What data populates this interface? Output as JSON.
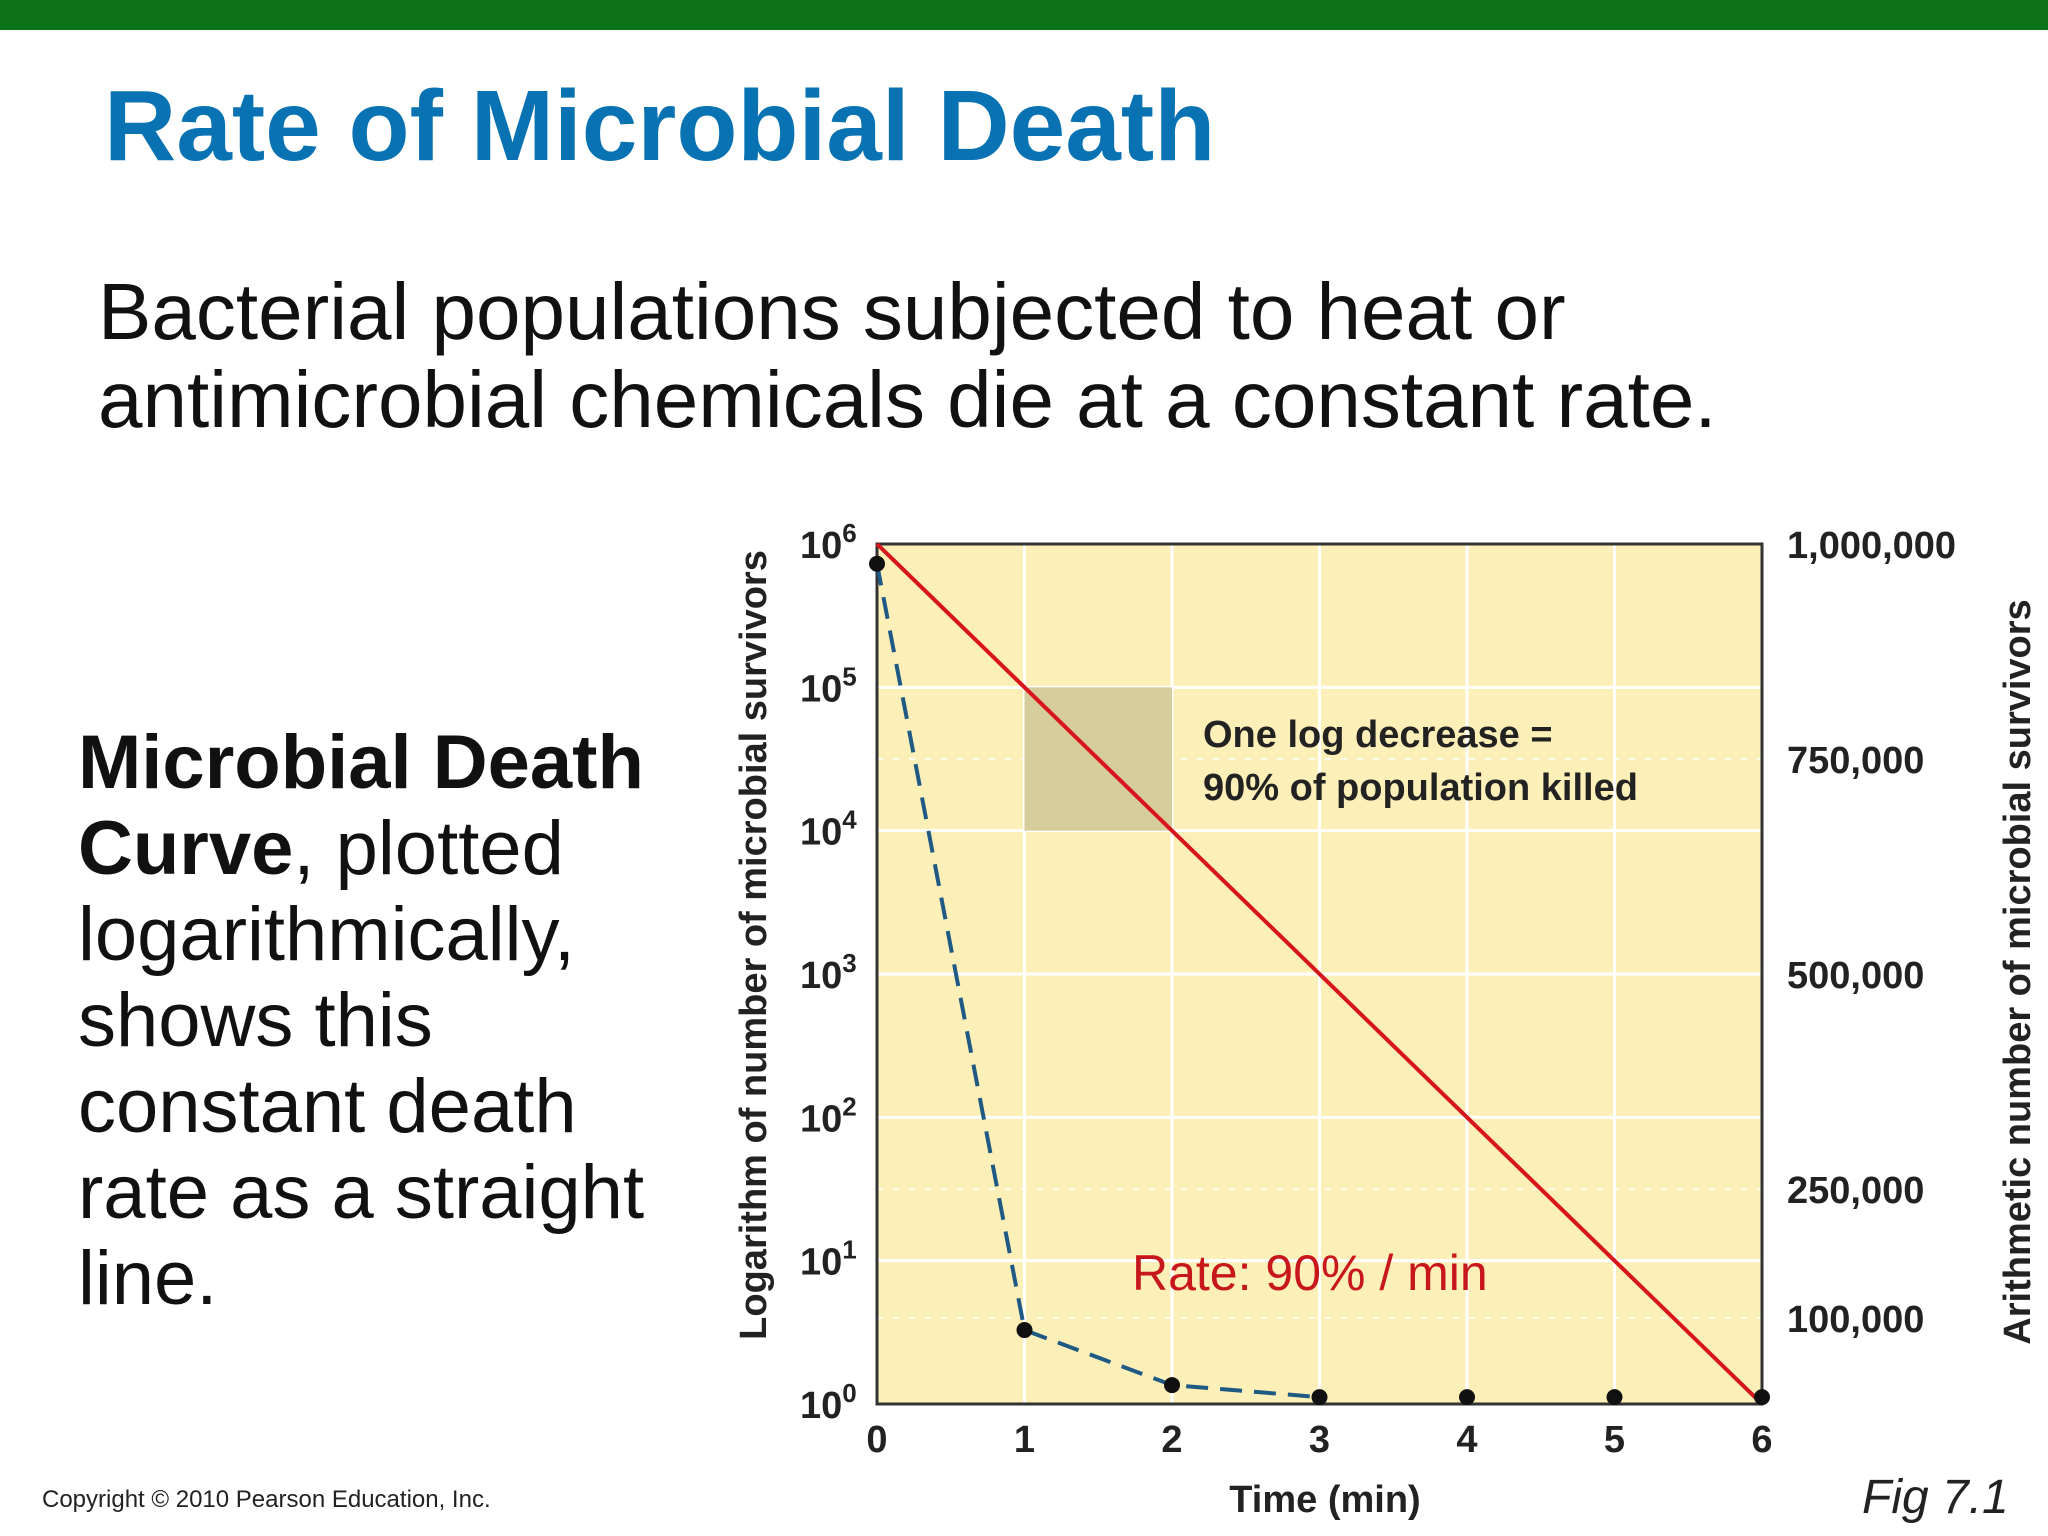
{
  "slide": {
    "title": "Rate of Microbial Death",
    "subtitle": "Bacterial populations subjected to heat or antimicrobial chemicals die at a constant rate.",
    "side_bold": "Microbial Death Curve",
    "side_rest": ", plotted logarithmically, shows this constant death rate as a straight line.",
    "copyright": "Copyright © 2010 Pearson Education, Inc.",
    "figure_label": "Fig 7.1"
  },
  "colors": {
    "title": "#0872b3",
    "top_bar": "#0b7217",
    "plot_background": "#fcefb8",
    "log_line": "#d8151d",
    "arithmetic_line": "#1f5a84",
    "highlight_box": "#d6cc9c"
  },
  "chart_data": {
    "type": "line",
    "xlabel": "Time (min)",
    "ylabel_left": "Logarithm of number of microbial survivors",
    "ylabel_right": "Arithmetic number of microbial survivors",
    "x_ticks": [
      "0",
      "1",
      "2",
      "3",
      "4",
      "5",
      "6"
    ],
    "xlim": [
      0,
      6
    ],
    "y_left_scale": "log",
    "y_left_ticks": [
      {
        "base": "10",
        "exp": "0"
      },
      {
        "base": "10",
        "exp": "1"
      },
      {
        "base": "10",
        "exp": "2"
      },
      {
        "base": "10",
        "exp": "3"
      },
      {
        "base": "10",
        "exp": "4"
      },
      {
        "base": "10",
        "exp": "5"
      },
      {
        "base": "10",
        "exp": "6"
      }
    ],
    "y_left_lim": [
      1,
      1000000
    ],
    "y_right_scale": "linear",
    "y_right_ticks": [
      {
        "label": "100,000",
        "value": 100000
      },
      {
        "label": "250,000",
        "value": 250000
      },
      {
        "label": "500,000",
        "value": 500000
      },
      {
        "label": "750,000",
        "value": 750000
      },
      {
        "label": "1,000,000",
        "value": 1000000
      }
    ],
    "y_right_lim": [
      0,
      1000000
    ],
    "grid": true,
    "series": [
      {
        "axis": "left-log",
        "style": "solid",
        "x": [
          0,
          6
        ],
        "y": [
          1000000,
          1
        ]
      },
      {
        "axis": "right-linear",
        "style": "dashed",
        "x": [
          0,
          1,
          2,
          3,
          4,
          5,
          6
        ],
        "y": [
          977000,
          86000,
          22000,
          8000,
          8000,
          8000,
          8000
        ]
      }
    ],
    "highlight_box": {
      "x": [
        1,
        2
      ],
      "y": [
        10000,
        100000
      ]
    },
    "annotations": {
      "box_line1": "One log decrease =",
      "box_line2": "90% of population killed",
      "rate": "Rate: 90% / min"
    }
  }
}
